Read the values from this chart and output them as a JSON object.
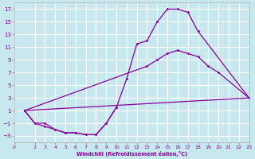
{
  "bg_color": "#c8e8f0",
  "grid_color": "#ffffff",
  "line_color": "#880099",
  "xlim": [
    0,
    23
  ],
  "ylim": [
    -4,
    18
  ],
  "xticks": [
    0,
    2,
    3,
    4,
    5,
    6,
    7,
    8,
    9,
    10,
    11,
    12,
    13,
    14,
    15,
    16,
    17,
    18,
    19,
    20,
    21,
    22,
    23
  ],
  "yticks": [
    -3,
    -1,
    1,
    3,
    5,
    7,
    9,
    11,
    13,
    15,
    17
  ],
  "xlabel": "Windchill (Refroidissement éolien,°C)",
  "curves": [
    {
      "x": [
        1,
        2,
        3,
        4,
        5,
        6,
        7,
        8,
        9,
        10,
        11,
        12,
        13,
        14,
        15,
        16,
        17,
        18,
        23
      ],
      "y": [
        1,
        -1,
        -1,
        -2,
        -2.5,
        -2.5,
        -2.8,
        -2.8,
        -1,
        1.5,
        6,
        11.5,
        12,
        15,
        17,
        17,
        16.5,
        13.5,
        3
      ]
    },
    {
      "x": [
        1,
        13,
        14,
        15,
        16,
        17,
        18,
        19,
        20,
        23
      ],
      "y": [
        1,
        8,
        9,
        10,
        10.5,
        10,
        9.5,
        8,
        7,
        3
      ]
    },
    {
      "x": [
        1,
        23
      ],
      "y": [
        1,
        3
      ]
    },
    {
      "x": [
        1,
        2,
        3,
        4,
        5,
        6,
        7,
        8,
        9,
        10
      ],
      "y": [
        1,
        -1,
        -1.5,
        -2,
        -2.5,
        -2.5,
        -2.8,
        -2.8,
        -1,
        1.5
      ]
    }
  ]
}
